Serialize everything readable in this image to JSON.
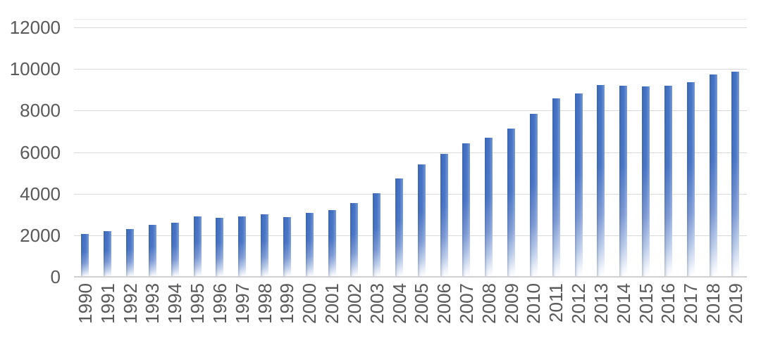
{
  "chart_data": {
    "type": "bar",
    "title": "",
    "xlabel": "",
    "ylabel": "",
    "categories": [
      "1990",
      "1991",
      "1992",
      "1993",
      "1994",
      "1995",
      "1996",
      "1997",
      "1998",
      "1999",
      "2000",
      "2001",
      "2002",
      "2003",
      "2004",
      "2005",
      "2006",
      "2007",
      "2008",
      "2009",
      "2010",
      "2011",
      "2012",
      "2013",
      "2014",
      "2015",
      "2016",
      "2017",
      "2018",
      "2019"
    ],
    "values": [
      2070,
      2210,
      2310,
      2520,
      2610,
      2920,
      2850,
      2900,
      3020,
      2880,
      3090,
      3220,
      3550,
      4030,
      4740,
      5420,
      5930,
      6440,
      6700,
      7120,
      7830,
      8580,
      8830,
      9220,
      9210,
      9150,
      9180,
      9360,
      9730,
      9860
    ],
    "ylim": [
      0,
      12000
    ],
    "y_ticks": [
      12000,
      10000,
      8000,
      6000,
      4000,
      2000,
      0
    ],
    "y_tick_labels": [
      "12000",
      "10000",
      "8000",
      "6000",
      "4000",
      "2000",
      "0"
    ],
    "grid": true,
    "legend": "none",
    "x_tick_rotation_degrees": 90,
    "colors": {
      "bar_top": "#4472C4",
      "bar_fade_bottom": "#FFFFFF",
      "gridline": "#D9D9D9",
      "axis_line": "#D0D0D0",
      "tick_label": "#595959",
      "background": "#FFFFFF"
    }
  }
}
